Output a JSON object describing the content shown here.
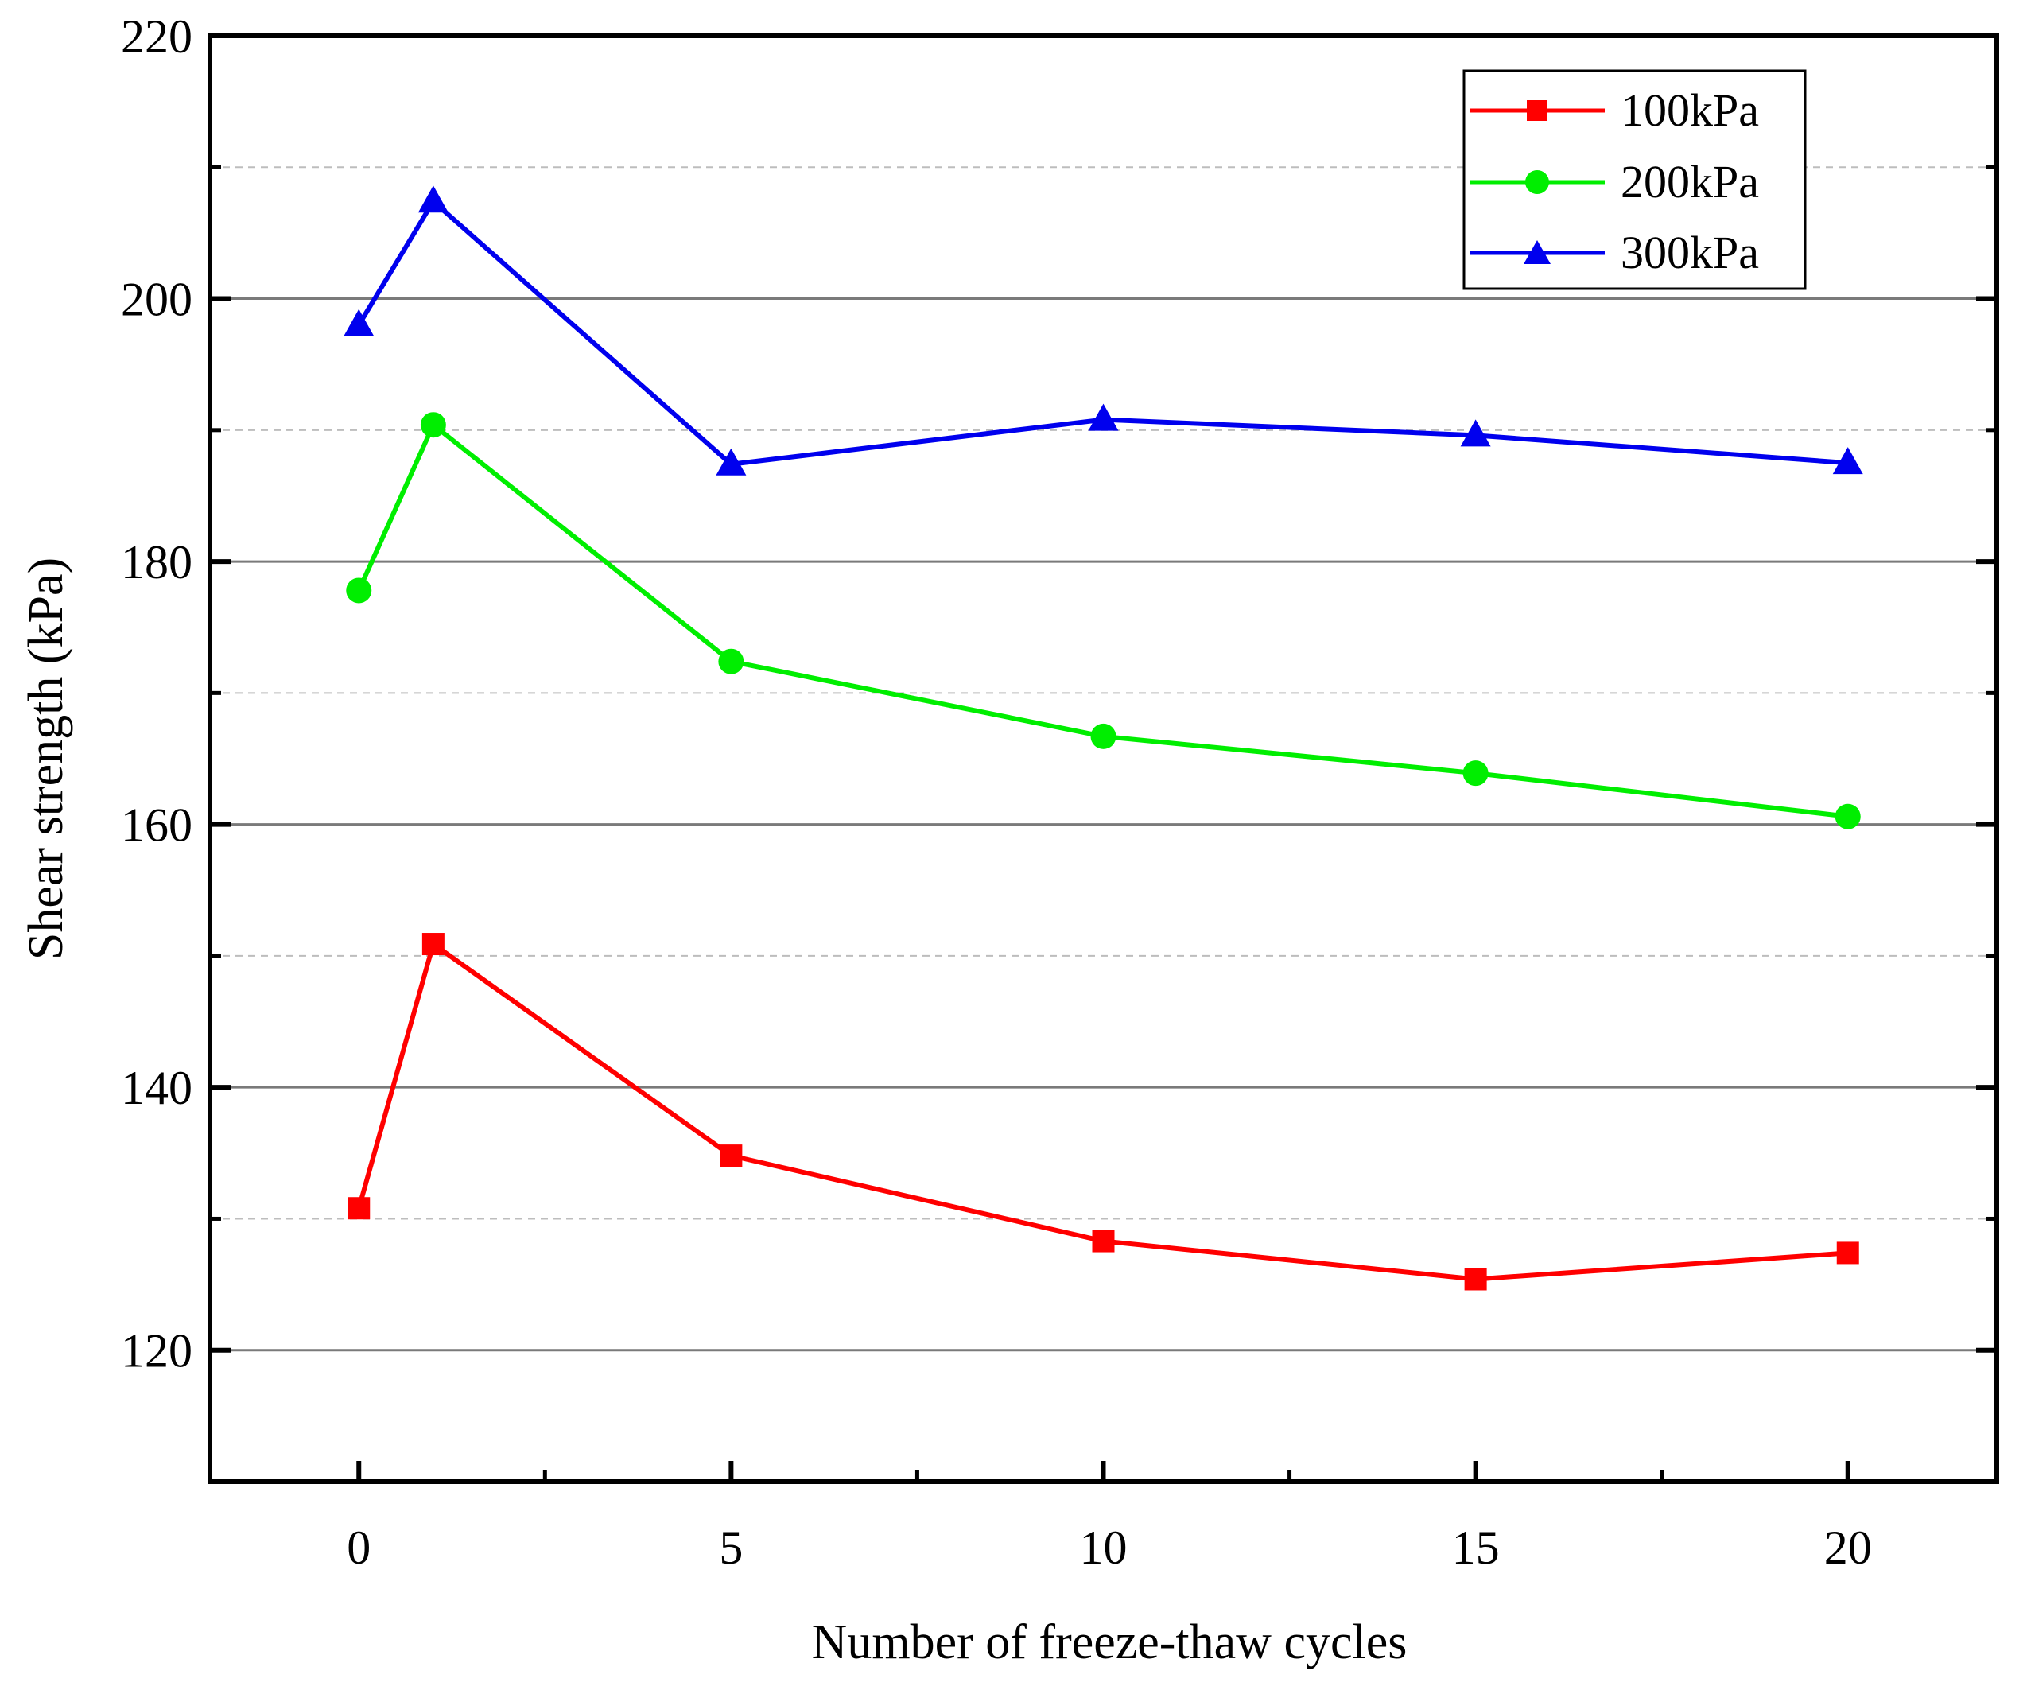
{
  "chart_data": {
    "type": "line",
    "title": "",
    "xlabel": "Number of freeze-thaw cycles",
    "ylabel": "Shear strength  (kPa)",
    "xlim": [
      -2,
      22
    ],
    "ylim": [
      110,
      220
    ],
    "xticks": [
      0,
      5,
      10,
      15,
      20
    ],
    "yticks": [
      120,
      140,
      160,
      180,
      200,
      220
    ],
    "x": [
      0,
      1,
      5,
      10,
      15,
      20
    ],
    "grid": true,
    "legend_position": "top-right",
    "series": [
      {
        "name": "100kPa",
        "marker": "square",
        "color": "#ff0000",
        "values": [
          130.8,
          150.9,
          134.8,
          128.3,
          125.4,
          127.4
        ]
      },
      {
        "name": "200kPa",
        "marker": "circle",
        "color": "#00ee00",
        "values": [
          177.8,
          190.4,
          172.4,
          166.7,
          163.9,
          160.6
        ]
      },
      {
        "name": "300kPa",
        "marker": "triangle",
        "color": "#0000ee",
        "values": [
          198.0,
          207.4,
          187.4,
          190.8,
          189.6,
          187.5
        ]
      }
    ]
  }
}
